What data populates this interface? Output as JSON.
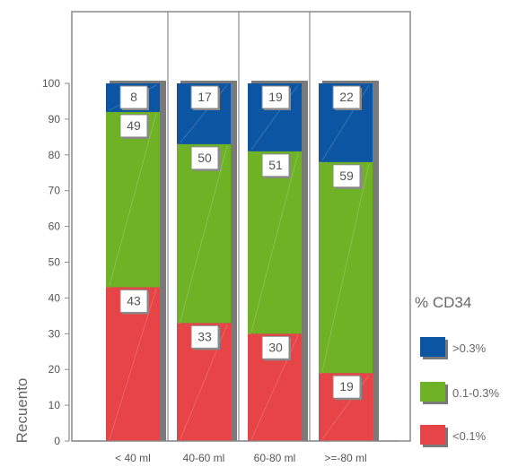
{
  "chart_data": {
    "type": "stacked-bar",
    "categories": [
      "< 40 ml",
      "40-60 ml",
      "60-80 ml",
      ">=-80 ml"
    ],
    "series": [
      {
        "name": "<0.1%",
        "color": "#e64446",
        "values": [
          43,
          33,
          30,
          19
        ]
      },
      {
        "name": "0.1-0.3%",
        "color": "#6fb226",
        "values": [
          49,
          50,
          51,
          59
        ]
      },
      {
        "name": ">0.3%",
        "color": "#0b55a3",
        "values": [
          8,
          17,
          19,
          22
        ]
      }
    ],
    "ylabel": "Recuento",
    "ylim": [
      0,
      100
    ],
    "yticks": [
      "0",
      "10",
      "20",
      "30",
      "40",
      "50",
      "60",
      "70",
      "80",
      "90",
      "100"
    ],
    "legend_title": "% CD34",
    "legend_placement": "right",
    "grid": "vertical-only"
  },
  "legend": {
    "title": "% CD34",
    "items": [
      {
        "label": ">0.3%",
        "color": "#0b55a3"
      },
      {
        "label": "0.1-0.3%",
        "color": "#6fb226"
      },
      {
        "label": "<0.1%",
        "color": "#e64446"
      }
    ]
  }
}
